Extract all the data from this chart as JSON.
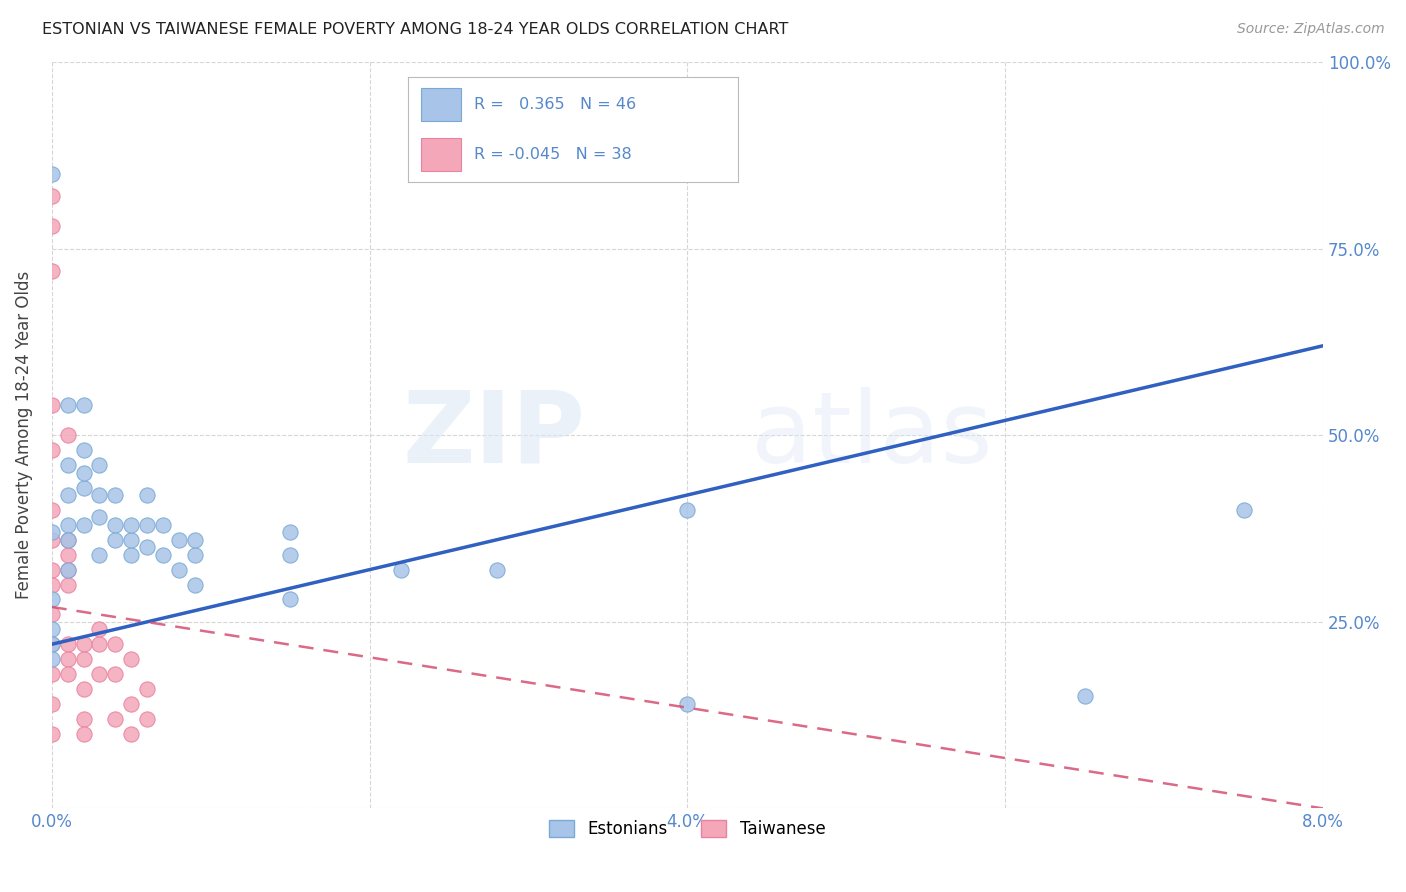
{
  "title": "ESTONIAN VS TAIWANESE FEMALE POVERTY AMONG 18-24 YEAR OLDS CORRELATION CHART",
  "source": "Source: ZipAtlas.com",
  "ylabel": "Female Poverty Among 18-24 Year Olds",
  "xlim": [
    0.0,
    0.08
  ],
  "ylim": [
    0.0,
    1.0
  ],
  "xticks": [
    0.0,
    0.02,
    0.04,
    0.06,
    0.08
  ],
  "yticks": [
    0.0,
    0.25,
    0.5,
    0.75,
    1.0
  ],
  "ytick_labels": [
    "",
    "25.0%",
    "50.0%",
    "75.0%",
    "100.0%"
  ],
  "xtick_labels": [
    "0.0%",
    "",
    "4.0%",
    "",
    "8.0%"
  ],
  "legend_labels": [
    "Estonians",
    "Taiwanese"
  ],
  "estonian_R": 0.365,
  "estonian_N": 46,
  "taiwanese_R": -0.045,
  "taiwanese_N": 38,
  "estonian_color": "#a8c4e8",
  "taiwanese_color": "#f4a7b9",
  "estonian_edge_color": "#7aaad4",
  "taiwanese_edge_color": "#e882a0",
  "estonian_line_color": "#3060c0",
  "taiwanese_line_color": "#d45070",
  "background_color": "#ffffff",
  "watermark_zip": "ZIP",
  "watermark_atlas": "atlas",
  "grid_color": "#cccccc",
  "tick_color": "#5588cc",
  "title_color": "#222222",
  "estonian_line_y0": 0.22,
  "estonian_line_y1": 0.62,
  "taiwanese_line_y0": 0.27,
  "taiwanese_line_y1": 0.0,
  "estonian_x": [
    0.003,
    0.003,
    0.001,
    0.001,
    0.001,
    0.001,
    0.001,
    0.001,
    0.0,
    0.0,
    0.0,
    0.0,
    0.0,
    0.0,
    0.002,
    0.002,
    0.002,
    0.002,
    0.002,
    0.003,
    0.003,
    0.004,
    0.004,
    0.004,
    0.005,
    0.005,
    0.005,
    0.006,
    0.006,
    0.006,
    0.007,
    0.007,
    0.008,
    0.008,
    0.009,
    0.009,
    0.009,
    0.015,
    0.015,
    0.015,
    0.022,
    0.028,
    0.04,
    0.04,
    0.065,
    0.075
  ],
  "estonian_y": [
    0.42,
    0.46,
    0.38,
    0.42,
    0.46,
    0.36,
    0.32,
    0.54,
    0.37,
    0.85,
    0.28,
    0.24,
    0.22,
    0.2,
    0.38,
    0.43,
    0.45,
    0.48,
    0.54,
    0.34,
    0.39,
    0.38,
    0.42,
    0.36,
    0.34,
    0.36,
    0.38,
    0.35,
    0.38,
    0.42,
    0.34,
    0.38,
    0.36,
    0.32,
    0.3,
    0.34,
    0.36,
    0.37,
    0.34,
    0.28,
    0.32,
    0.32,
    0.4,
    0.14,
    0.15,
    0.4
  ],
  "taiwanese_x": [
    0.0,
    0.0,
    0.0,
    0.0,
    0.0,
    0.0,
    0.0,
    0.0,
    0.0,
    0.0,
    0.0,
    0.0,
    0.0,
    0.0,
    0.001,
    0.001,
    0.001,
    0.001,
    0.001,
    0.001,
    0.001,
    0.001,
    0.002,
    0.002,
    0.002,
    0.002,
    0.002,
    0.003,
    0.003,
    0.003,
    0.004,
    0.004,
    0.004,
    0.005,
    0.005,
    0.005,
    0.006,
    0.006
  ],
  "taiwanese_y": [
    0.78,
    0.82,
    0.72,
    0.54,
    0.48,
    0.4,
    0.36,
    0.32,
    0.3,
    0.26,
    0.22,
    0.18,
    0.14,
    0.1,
    0.3,
    0.32,
    0.34,
    0.36,
    0.5,
    0.22,
    0.2,
    0.18,
    0.22,
    0.2,
    0.16,
    0.12,
    0.1,
    0.18,
    0.22,
    0.24,
    0.22,
    0.18,
    0.12,
    0.2,
    0.14,
    0.1,
    0.16,
    0.12
  ]
}
